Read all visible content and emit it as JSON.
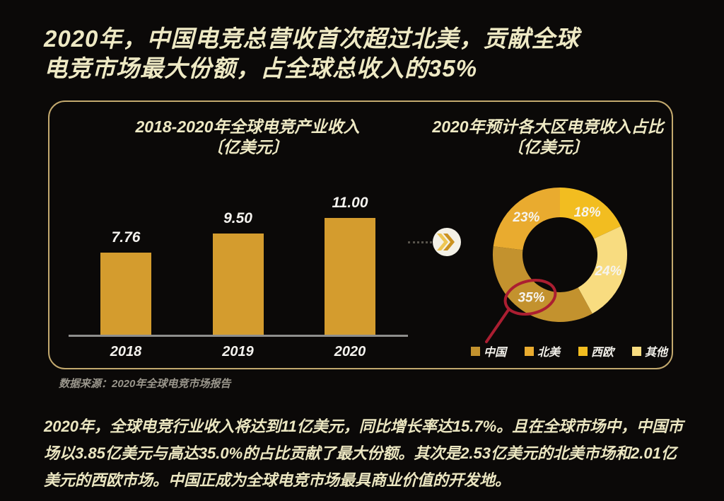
{
  "page": {
    "title_line1": "2020年，中国电竞总营收首次超过北美，贡献全球",
    "title_line2": "电竞市场最大份额，占全球总收入的35%",
    "source": "数据来源：2020年全球电竞市场报告",
    "paragraph_lines": [
      "2020年，全球电竞行业收入将达到11亿美元，同比增长率达15.7%。且在全球市场中，中国市",
      "场以3.85亿美元与高达35.0%的占比贡献了最大份额。其次是2.53亿美元的北美市场和2.01亿",
      "美元的西欧市场。中国正成为全球电竞市场最具商业价值的开发地。"
    ]
  },
  "colors": {
    "background": "#0b0908",
    "cream_text": "#eee9c4",
    "panel_border": "#c3a96e",
    "bar_gold": "#d49c2e",
    "axis_gray": "#8e8e8c",
    "annotation_red": "#ab1e31",
    "arrow_circle_bg": "#f4f1e7",
    "chevron_light": "#eec653",
    "chevron_dark": "#cb9220"
  },
  "chart_data": [
    {
      "type": "bar",
      "title": "2018-2020年全球电竞产业收入",
      "unit_label": "〔亿美元〕",
      "categories": [
        "2018",
        "2019",
        "2020"
      ],
      "values": [
        7.76,
        9.5,
        11.0
      ],
      "value_labels": [
        "7.76",
        "9.50",
        "11.00"
      ],
      "ylim": [
        0,
        12
      ],
      "bar_color": "#d49c2e",
      "grid": false
    },
    {
      "type": "pie",
      "subtype": "donut",
      "title": "2020年预计各大区电竞收入占比",
      "unit_label": "〔亿美元〕",
      "start_angle_deg": 0,
      "slices": [
        {
          "label": "西欧",
          "value": 18,
          "text": "18%",
          "color": "#f2bd20"
        },
        {
          "label": "其他",
          "value": 24,
          "text": "24%",
          "color": "#f8dc80"
        },
        {
          "label": "中国",
          "value": 35,
          "text": "35%",
          "color": "#c3922e",
          "annotated": true
        },
        {
          "label": "北美",
          "value": 23,
          "text": "23%",
          "color": "#e9ab2f"
        }
      ],
      "legend": [
        {
          "label": "中国",
          "color": "#c3922e"
        },
        {
          "label": "北美",
          "color": "#e9ab2f"
        },
        {
          "label": "西欧",
          "color": "#f2bd20"
        },
        {
          "label": "其他",
          "color": "#f8dc80"
        }
      ],
      "legend_position": "bottom",
      "annotation": "35% slice circled in red, linked by red line to 中国 legend item"
    }
  ]
}
